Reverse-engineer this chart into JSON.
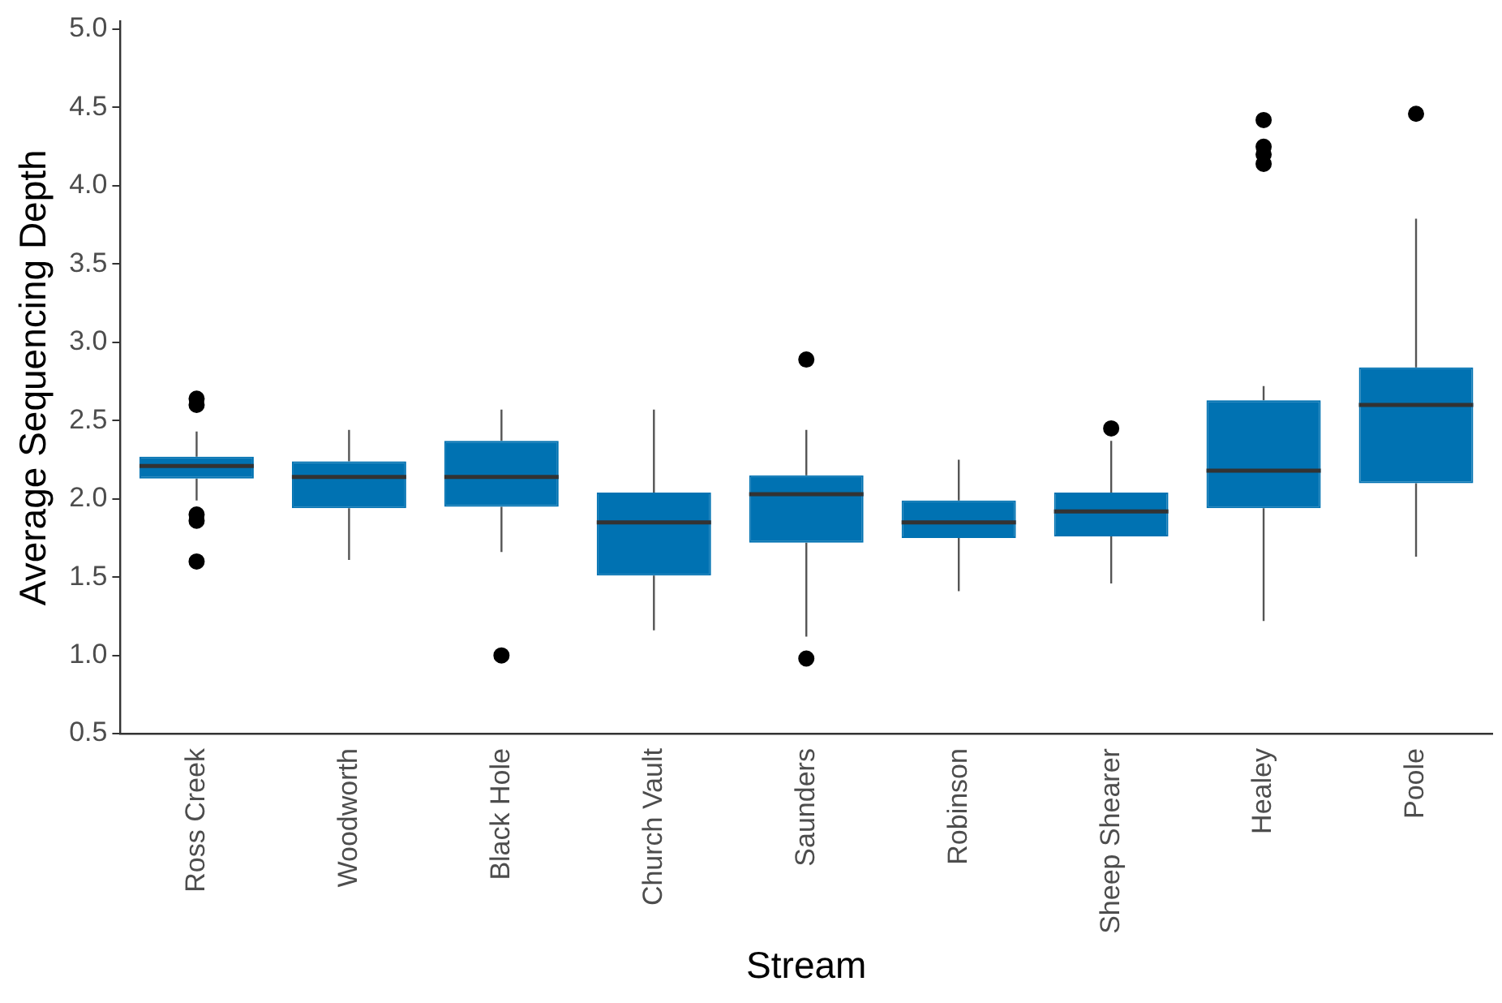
{
  "chart_data": {
    "type": "box",
    "xlabel": "Stream",
    "ylabel": "Average Sequencing Depth",
    "categories": [
      "Ross Creek",
      "Woodworth",
      "Black Hole",
      "Church Vault",
      "Saunders",
      "Robinson",
      "Sheep Shearer",
      "Healey",
      "Poole"
    ],
    "color": "#0072b2",
    "boxes": [
      {
        "low": 1.99,
        "q1": 2.13,
        "median": 2.21,
        "q3": 2.27,
        "high": 2.43,
        "outliers": [
          2.64,
          2.6,
          1.9,
          1.86,
          1.6
        ]
      },
      {
        "low": 1.61,
        "q1": 1.94,
        "median": 2.14,
        "q3": 2.24,
        "high": 2.44
      },
      {
        "low": 1.66,
        "q1": 1.95,
        "median": 2.14,
        "q3": 2.37,
        "high": 2.57,
        "outliers": [
          1.0
        ]
      },
      {
        "low": 1.16,
        "q1": 1.51,
        "median": 1.85,
        "q3": 2.04,
        "high": 2.57
      },
      {
        "low": 1.12,
        "q1": 1.72,
        "median": 2.03,
        "q3": 2.15,
        "high": 2.44,
        "outliers": [
          2.89,
          0.98
        ]
      },
      {
        "low": 1.41,
        "q1": 1.75,
        "median": 1.85,
        "q3": 1.99,
        "high": 2.25
      },
      {
        "low": 1.46,
        "q1": 1.76,
        "median": 1.92,
        "q3": 2.04,
        "high": 2.37,
        "outliers": [
          2.45
        ]
      },
      {
        "low": 1.22,
        "q1": 1.94,
        "median": 2.18,
        "q3": 2.63,
        "high": 2.72,
        "outliers": [
          4.42,
          4.25,
          4.2,
          4.14
        ]
      },
      {
        "low": 1.63,
        "q1": 2.1,
        "median": 2.6,
        "q3": 2.84,
        "high": 3.79,
        "outliers": [
          4.46
        ]
      }
    ],
    "ylim": [
      0.5,
      5.05
    ],
    "yticks": [
      {
        "value": 0.5,
        "label": "0.5"
      },
      {
        "value": 1,
        "label": "1.0"
      },
      {
        "value": 1.5,
        "label": "1.5"
      },
      {
        "value": 2,
        "label": "2.0"
      },
      {
        "value": 2.5,
        "label": "2.5"
      },
      {
        "value": 3,
        "label": "3.0"
      },
      {
        "value": 3.5,
        "label": "3.5"
      },
      {
        "value": 4,
        "label": "4.0"
      },
      {
        "value": 4.5,
        "label": "4.5"
      },
      {
        "value": 5,
        "label": "5.0"
      }
    ],
    "grid": false,
    "legend": false
  }
}
